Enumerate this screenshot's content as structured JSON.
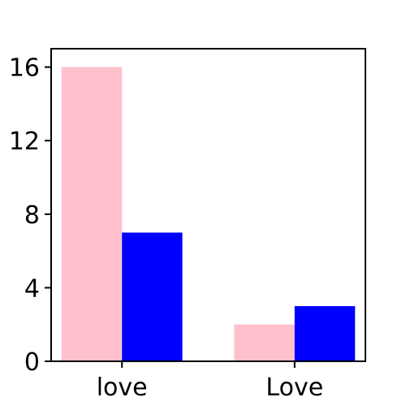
{
  "chart_data": {
    "type": "bar",
    "categories": [
      "love",
      "Love"
    ],
    "series": [
      {
        "values": [
          16,
          2
        ],
        "color": "#ffc0cb"
      },
      {
        "values": [
          7,
          3
        ],
        "color": "#0000ff"
      }
    ],
    "title": "",
    "xlabel": "",
    "ylabel": "",
    "ylim": [
      0,
      17
    ],
    "yticks": [
      0,
      4,
      8,
      12,
      16
    ],
    "ytick_labels": [
      "0",
      "4",
      "8",
      "12",
      "16"
    ],
    "grid": false,
    "legend": "none"
  }
}
